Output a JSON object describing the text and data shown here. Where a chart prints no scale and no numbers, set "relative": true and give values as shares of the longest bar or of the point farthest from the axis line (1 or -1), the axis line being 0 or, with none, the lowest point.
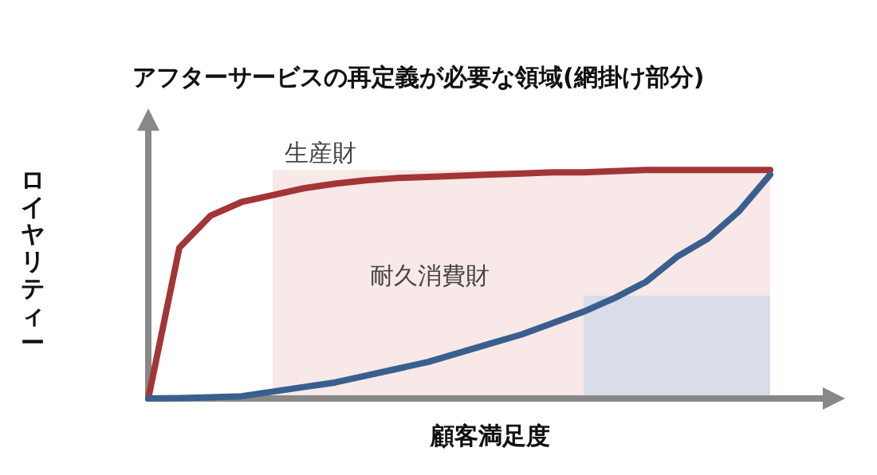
{
  "chart_data": {
    "type": "line",
    "relative": true,
    "title": "アフターサービスの再定義が必要な領域(網掛け部分)",
    "xlabel": "顧客満足度",
    "ylabel": "ロイヤリティー",
    "grid": false,
    "legend": false,
    "marker": "none",
    "line_style": "solid",
    "categories": [
      null,
      null,
      null,
      null,
      null,
      null,
      null,
      null,
      null,
      null,
      null,
      null,
      null,
      null,
      null,
      null,
      null,
      null,
      null,
      null,
      null,
      null,
      null
    ],
    "series": [
      {
        "name": "生産財",
        "color": "#a33536",
        "values": [
          0,
          0.66,
          0.8,
          0.86,
          0.89,
          0.92,
          0.94,
          0.955,
          0.965,
          0.97,
          0.975,
          0.98,
          0.985,
          0.99,
          0.99,
          0.995,
          1,
          1,
          1,
          1,
          1,
          null,
          null
        ]
      },
      {
        "name": "耐久消費財",
        "color": "#3a5f8f",
        "values": [
          0,
          0.002,
          0.005,
          0.01,
          0.03,
          0.05,
          0.07,
          0.1,
          0.13,
          0.16,
          0.2,
          0.24,
          0.28,
          0.33,
          0.38,
          0.44,
          0.51,
          0.62,
          0.7,
          0.82,
          0.98,
          null,
          null
        ]
      }
    ]
  }
}
